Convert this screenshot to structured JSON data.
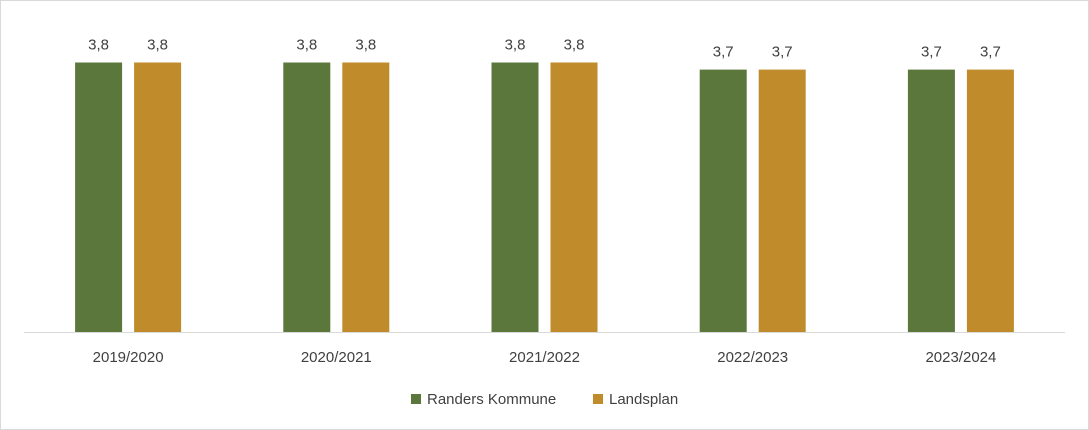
{
  "chart_data": {
    "type": "bar",
    "categories": [
      "2019/2020",
      "2020/2021",
      "2021/2022",
      "2022/2023",
      "2023/2024"
    ],
    "series": [
      {
        "name": "Randers Kommune",
        "values": [
          3.8,
          3.8,
          3.8,
          3.7,
          3.7
        ],
        "labels": [
          "3,8",
          "3,8",
          "3,8",
          "3,7",
          "3,7"
        ],
        "color": "#5b773c"
      },
      {
        "name": "Landsplan",
        "values": [
          3.8,
          3.8,
          3.8,
          3.7,
          3.7
        ],
        "labels": [
          "3,8",
          "3,8",
          "3,8",
          "3,7",
          "3,7"
        ],
        "color": "#c08b2a"
      }
    ],
    "title": "",
    "xlabel": "",
    "ylabel": "",
    "ylim": [
      0,
      4.4
    ],
    "grid": false,
    "legend_position": "bottom"
  }
}
